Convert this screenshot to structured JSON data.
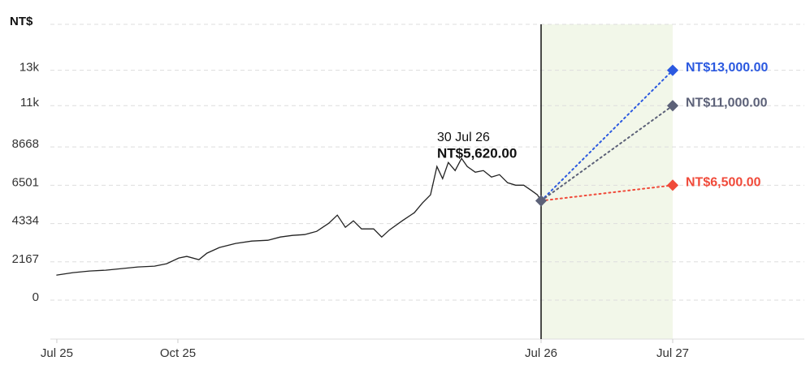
{
  "chart_data": {
    "type": "line",
    "y_label": "NT$",
    "xlim": [
      -0.16,
      36
    ],
    "ylim": [
      -2200,
      15600
    ],
    "xticks": [
      {
        "value": 0,
        "label": "Jul 25"
      },
      {
        "value": 3,
        "label": "Oct 25"
      },
      {
        "value": 12,
        "label": "Jul 26"
      },
      {
        "value": 24,
        "label": "Jul 27"
      }
    ],
    "yticks": [
      0,
      2167,
      4334,
      6501,
      8668,
      {
        "value": 11000,
        "label": "11k"
      },
      {
        "value": 13000,
        "label": "13k"
      }
    ],
    "grid": true,
    "forecast_region": [
      12,
      24
    ],
    "annotation": {
      "date": "30 Jul 26",
      "label": "NT$5,620.00"
    },
    "series": [
      {
        "color": "#222222",
        "x": [
          0,
          0.4,
          0.81,
          1.21,
          1.61,
          2.01,
          2.42,
          2.72,
          3.02,
          3.22,
          3.52,
          3.72,
          4.03,
          4.43,
          4.83,
          5.23,
          5.54,
          5.84,
          6.14,
          6.44,
          6.74,
          6.95,
          7.15,
          7.35,
          7.55,
          7.85,
          8.05,
          8.25,
          8.56,
          8.86,
          9.06,
          9.26,
          9.42,
          9.56,
          9.7,
          9.87,
          10.03,
          10.17,
          10.37,
          10.57,
          10.77,
          10.97,
          11.17,
          11.37,
          11.57,
          11.77,
          11.91,
          12
        ],
        "values": [
          1420,
          1557,
          1649,
          1695,
          1786,
          1878,
          1924,
          2061,
          2382,
          2474,
          2290,
          2657,
          2978,
          3207,
          3344,
          3390,
          3573,
          3665,
          3710,
          3894,
          4352,
          4810,
          4123,
          4489,
          4031,
          4031,
          3573,
          3985,
          4489,
          4947,
          5497,
          5955,
          7558,
          6871,
          7787,
          7329,
          8016,
          7558,
          7238,
          7329,
          6963,
          7100,
          6642,
          6505,
          6505,
          6184,
          5955,
          5620
        ]
      },
      {
        "color": "#2b59e0",
        "x": [
          12,
          24
        ],
        "values": [
          5620,
          13000
        ],
        "value_labels": [
          null,
          "NT$13,000.00"
        ]
      },
      {
        "color": "#5c6178",
        "x": [
          12,
          24
        ],
        "values": [
          5620,
          11000
        ],
        "value_labels": [
          null,
          "NT$11,000.00"
        ]
      },
      {
        "color": "#f04a3a",
        "x": [
          12,
          24
        ],
        "values": [
          5620,
          6500
        ],
        "value_labels": [
          null,
          "NT$6,500.00"
        ]
      }
    ]
  }
}
